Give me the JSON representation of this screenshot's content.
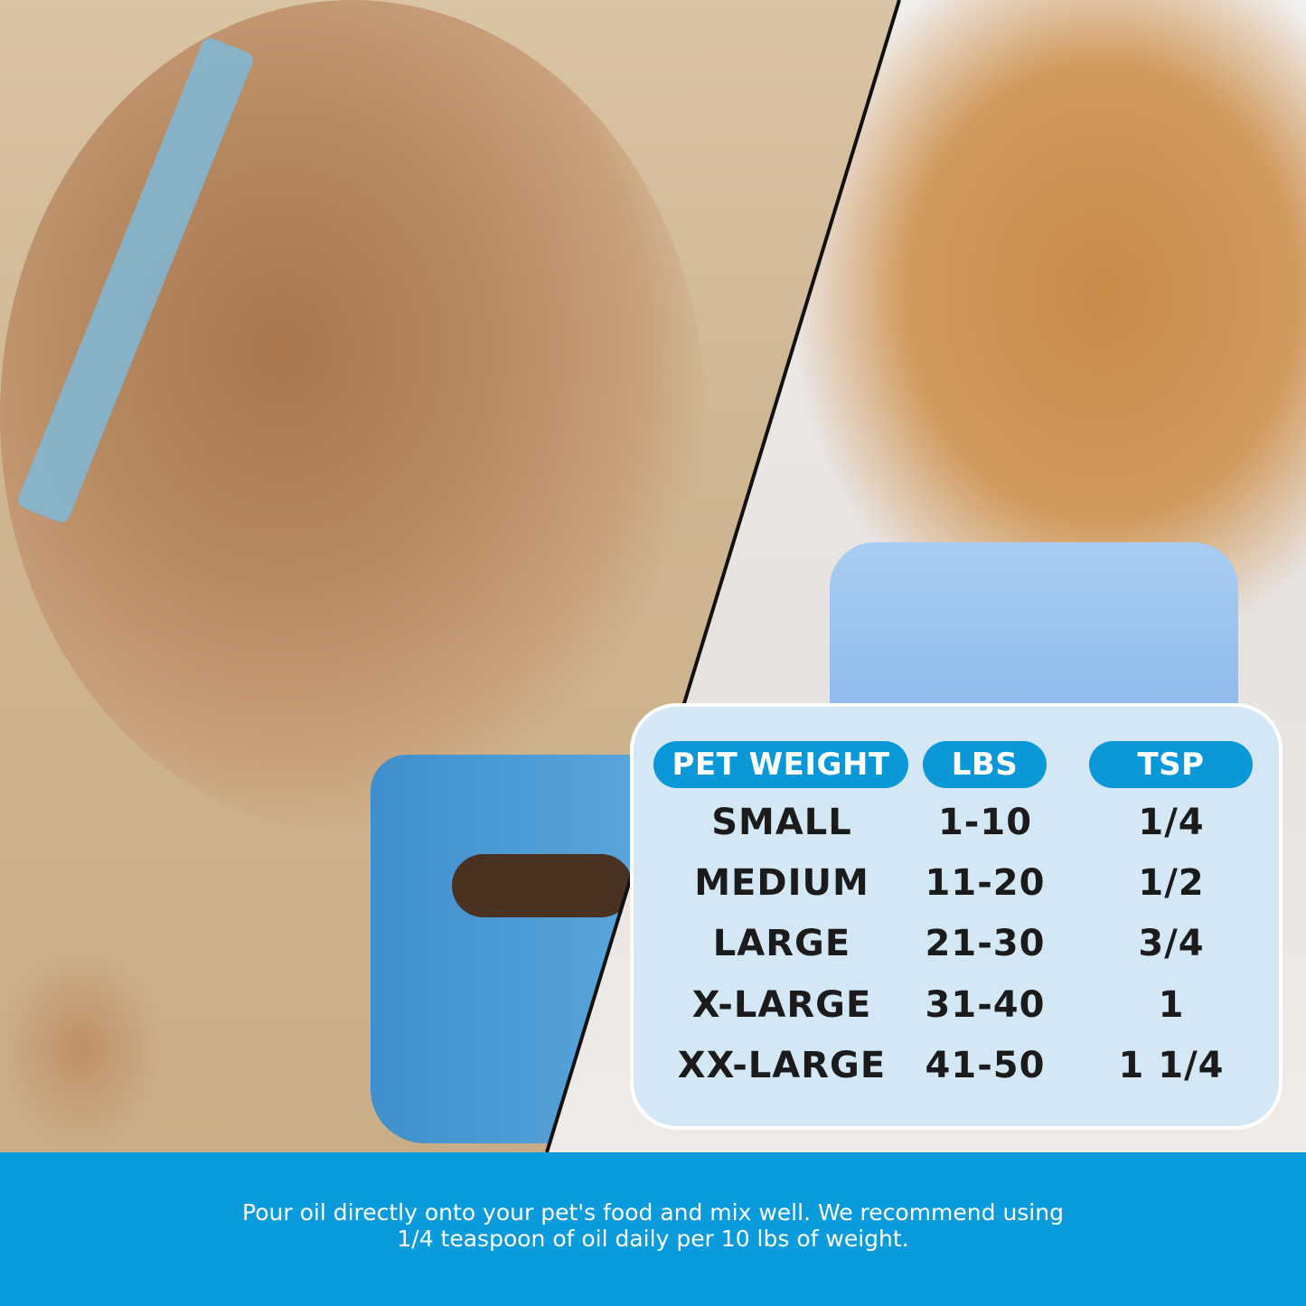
{
  "table": {
    "headers": [
      "PET WEIGHT",
      "LBS",
      "TSP"
    ],
    "rows": [
      {
        "size": "SMALL",
        "lbs": "1-10",
        "tsp": "1/4"
      },
      {
        "size": "MEDIUM",
        "lbs": "11-20",
        "tsp": "1/2"
      },
      {
        "size": "LARGE",
        "lbs": "21-30",
        "tsp": "3/4"
      },
      {
        "size": "X-LARGE",
        "lbs": "31-40",
        "tsp": "1"
      },
      {
        "size": "XX-LARGE",
        "lbs": "41-50",
        "tsp": "1 1/4"
      }
    ]
  },
  "banner": {
    "line1": "Pour oil directly onto your pet's food and mix well. We recommend using",
    "line2": "1/4 teaspoon of oil daily per 10 lbs of weight."
  },
  "colors": {
    "accent": "#0a98d8",
    "panel": "#d3e7f5",
    "text": "#1b1b1b"
  }
}
